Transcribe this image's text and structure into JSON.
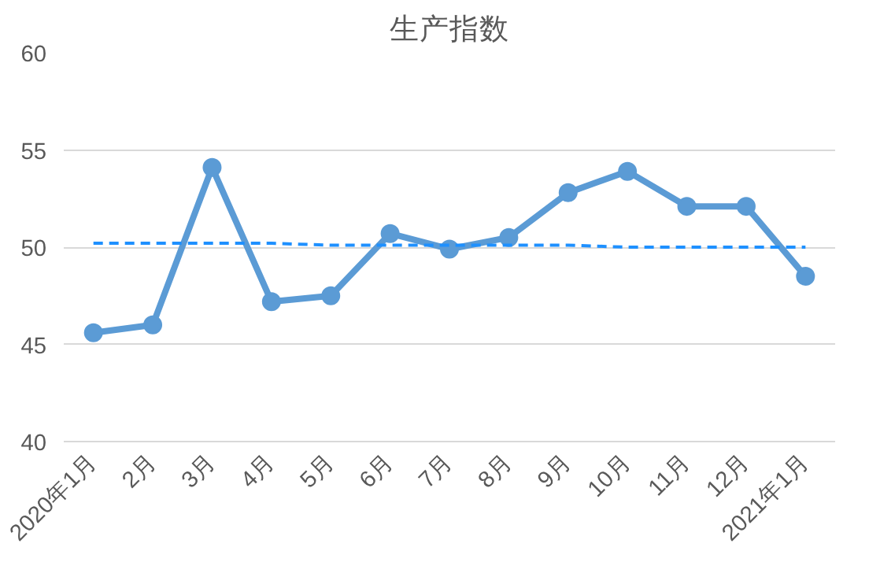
{
  "chart_data": {
    "type": "line",
    "title": "生产指数",
    "categories": [
      "2020年1月",
      "2月",
      "3月",
      "4月",
      "5月",
      "6月",
      "7月",
      "8月",
      "9月",
      "10月",
      "11月",
      "12月",
      "2021年1月"
    ],
    "series": [
      {
        "color": "#5b9bd5",
        "values": [
          45.6,
          46.0,
          54.1,
          47.2,
          47.5,
          50.7,
          49.9,
          50.5,
          52.8,
          53.9,
          52.1,
          52.1,
          48.5
        ],
        "marker": "circle",
        "line_style": "solid"
      },
      {
        "color": "#1e90ff",
        "values": [
          50.2,
          50.2,
          50.2,
          50.2,
          50.1,
          50.1,
          50.1,
          50.1,
          50.1,
          50.0,
          50.0,
          50.0,
          50.0
        ],
        "marker": "none",
        "line_style": "dashed"
      }
    ],
    "ylim": [
      40,
      60
    ],
    "yticks": [
      40,
      45,
      50,
      55,
      60
    ],
    "grid": "y"
  }
}
